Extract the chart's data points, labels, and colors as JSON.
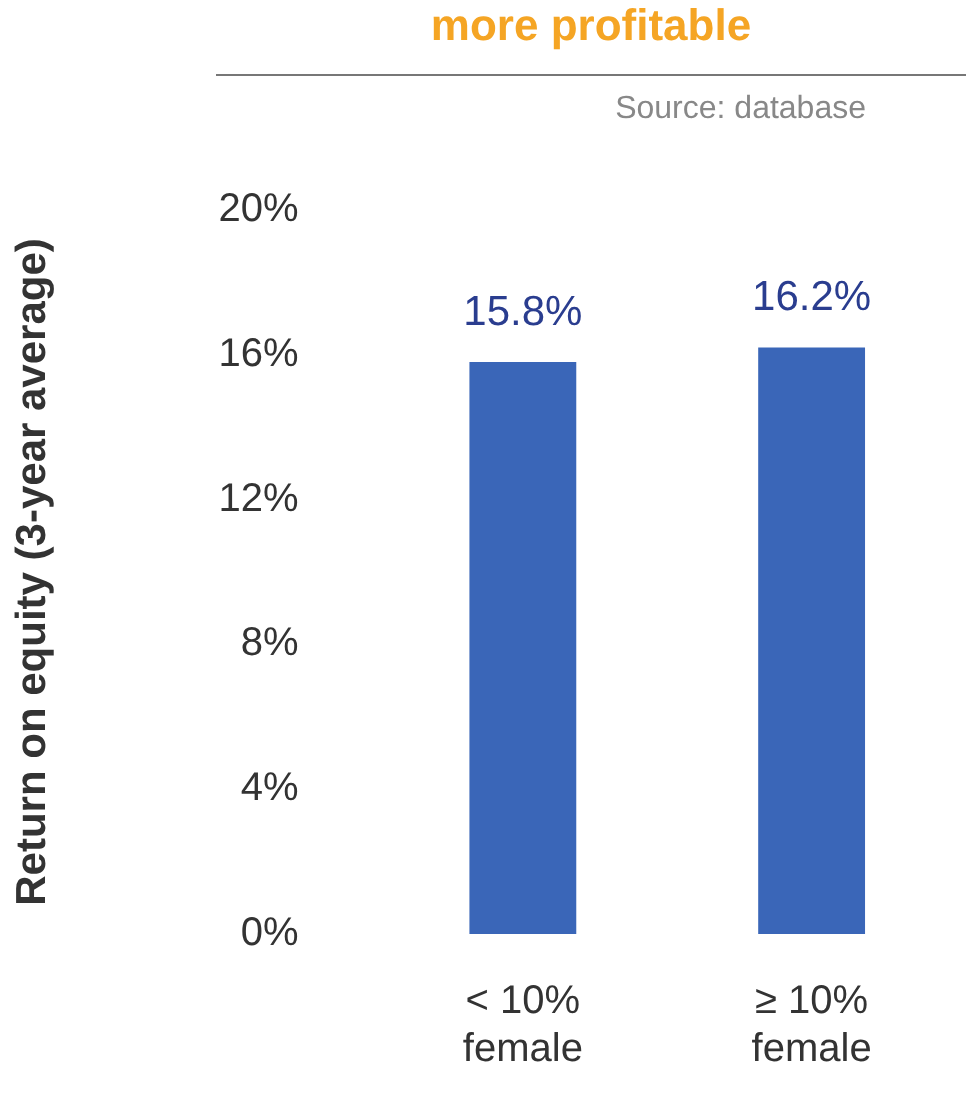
{
  "chart_data": {
    "type": "bar",
    "title": "more profitable",
    "ylabel": "Return on equity (3-year average)",
    "annotations": [
      "Source: database"
    ],
    "categories": [
      "< 10%\nfemale",
      "≥ 10%\nfemale"
    ],
    "values": [
      15.8,
      16.2
    ],
    "value_labels": [
      "15.8%",
      "16.2%"
    ],
    "color": "#3a66b8",
    "ylim": [
      0,
      20
    ],
    "yticks": [
      {
        "value": 0,
        "label": "0%"
      },
      {
        "value": 4,
        "label": "4%"
      },
      {
        "value": 8,
        "label": "8%"
      },
      {
        "value": 12,
        "label": "12%"
      },
      {
        "value": 16,
        "label": "16%"
      },
      {
        "value": 20,
        "label": "20%"
      }
    ],
    "grid": false,
    "legend": false
  }
}
